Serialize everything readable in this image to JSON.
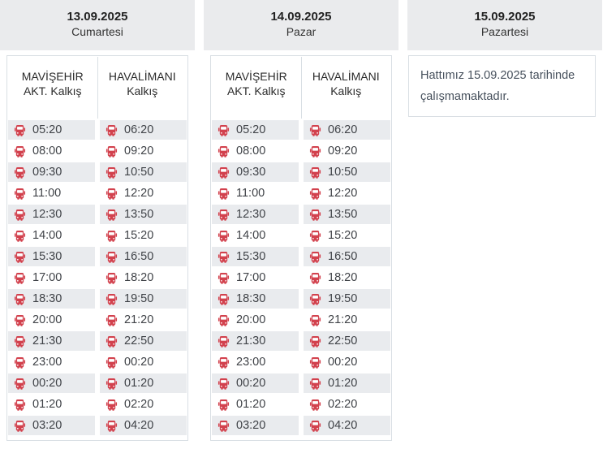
{
  "board": {
    "days": [
      {
        "date": "13.09.2025",
        "day_name": "Cumartesi",
        "columns": [
          {
            "line1": "MAVİŞEHİR",
            "line2": "AKT. Kalkış"
          },
          {
            "line1": "HAVALİMANI",
            "line2": "Kalkış"
          }
        ],
        "rows": [
          [
            "05:20",
            "06:20"
          ],
          [
            "08:00",
            "09:20"
          ],
          [
            "09:30",
            "10:50"
          ],
          [
            "11:00",
            "12:20"
          ],
          [
            "12:30",
            "13:50"
          ],
          [
            "14:00",
            "15:20"
          ],
          [
            "15:30",
            "16:50"
          ],
          [
            "17:00",
            "18:20"
          ],
          [
            "18:30",
            "19:50"
          ],
          [
            "20:00",
            "21:20"
          ],
          [
            "21:30",
            "22:50"
          ],
          [
            "23:00",
            "00:20"
          ],
          [
            "00:20",
            "01:20"
          ],
          [
            "01:20",
            "02:20"
          ],
          [
            "03:20",
            "04:20"
          ]
        ]
      },
      {
        "date": "14.09.2025",
        "day_name": "Pazar",
        "columns": [
          {
            "line1": "MAVİŞEHİR",
            "line2": "AKT. Kalkış"
          },
          {
            "line1": "HAVALİMANI",
            "line2": "Kalkış"
          }
        ],
        "rows": [
          [
            "05:20",
            "06:20"
          ],
          [
            "08:00",
            "09:20"
          ],
          [
            "09:30",
            "10:50"
          ],
          [
            "11:00",
            "12:20"
          ],
          [
            "12:30",
            "13:50"
          ],
          [
            "14:00",
            "15:20"
          ],
          [
            "15:30",
            "16:50"
          ],
          [
            "17:00",
            "18:20"
          ],
          [
            "18:30",
            "19:50"
          ],
          [
            "20:00",
            "21:20"
          ],
          [
            "21:30",
            "22:50"
          ],
          [
            "23:00",
            "00:20"
          ],
          [
            "00:20",
            "01:20"
          ],
          [
            "01:20",
            "02:20"
          ],
          [
            "03:20",
            "04:20"
          ]
        ]
      },
      {
        "date": "15.09.2025",
        "day_name": "Pazartesi",
        "notice": "Hattımız 15.09.2025 tarihinde çalışmamaktadır."
      }
    ]
  },
  "icons": {
    "time_row_icon": "bus-icon"
  },
  "colors": {
    "panel_header_bg": "#eaebed",
    "row_alt_bg": "#e9ebee",
    "border": "#d9dfe4",
    "icon_red": "#d2414d",
    "heading_text": "#222222",
    "body_text": "#3f4247",
    "notice_text": "#46505c"
  }
}
